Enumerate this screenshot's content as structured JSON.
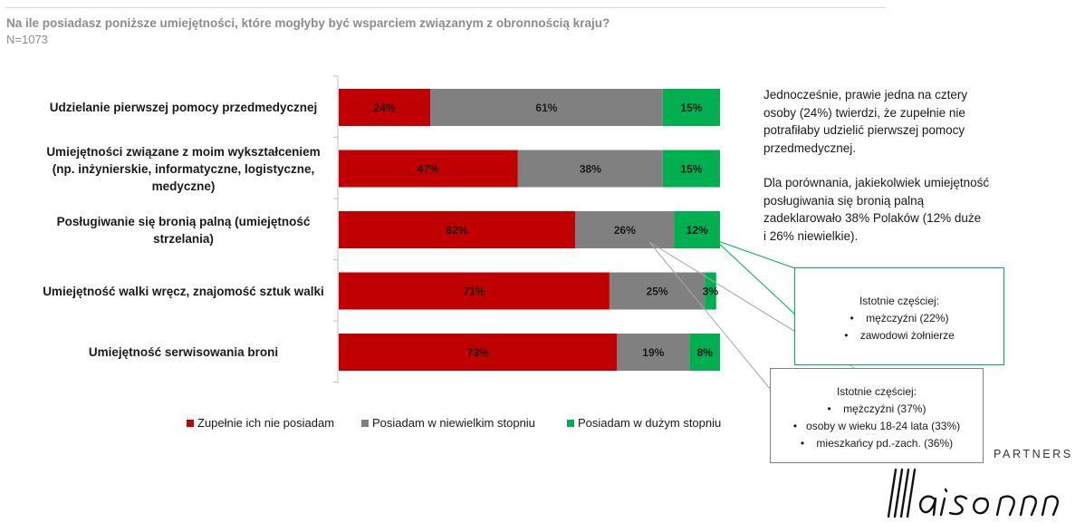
{
  "title": "Na ile posiadasz poniższe umiejętności, które mogłyby być wsparciem związanym z obronnością kraju?",
  "subtitle": "N=1073",
  "colors": {
    "none": "#c00000",
    "small": "#808080",
    "large": "#00b050"
  },
  "chart_data": {
    "type": "bar",
    "orientation": "horizontal",
    "stacked": true,
    "xlim": [
      0,
      100
    ],
    "categories": [
      "Udzielanie pierwszej pomocy przedmedycznej",
      "Umiejętności związane z moim wykształceniem (np. inżynierskie, informatyczne, logistyczne, medyczne)",
      "Posługiwanie się bronią palną (umiejętność strzelania)",
      "Umiejętność walki wręcz, znajomość sztuk walki",
      "Umiejętność serwisowania broni"
    ],
    "category_lines": [
      [
        "Udzielanie pierwszej pomocy przedmedycznej"
      ],
      [
        "Umiejętności związane z moim wykształceniem",
        "(np. inżynierskie, informatyczne, logistyczne,",
        "medyczne)"
      ],
      [
        "Posługiwanie się bronią palną (umiejętność",
        "strzelania)"
      ],
      [
        "Umiejętność walki wręcz, znajomość sztuk walki"
      ],
      [
        "Umiejętność serwisowania broni"
      ]
    ],
    "series": [
      {
        "name": "Zupełnie ich nie posiadam",
        "values": [
          24,
          47,
          62,
          71,
          73
        ],
        "labels": [
          "24%",
          "47%",
          "62%",
          "71%",
          "73%"
        ]
      },
      {
        "name": "Posiadam w niewielkim stopniu",
        "values": [
          61,
          38,
          26,
          25,
          19
        ],
        "labels": [
          "61%",
          "38%",
          "26%",
          "25%",
          "19%"
        ]
      },
      {
        "name": "Posiadam w dużym stopniu",
        "values": [
          15,
          15,
          12,
          3,
          8
        ],
        "labels": [
          "15%",
          "15%",
          "12%",
          "3%",
          "8%"
        ]
      }
    ],
    "legend_position": "bottom"
  },
  "note": {
    "p1": [
      "Jednocześnie, prawie jedna na cztery",
      "osoby (24%) twierdzi, że zupełnie nie",
      "potrafiłaby udzielić pierwszej pomocy",
      "przedmedycznej."
    ],
    "p2": [
      "Dla porównania, jakiekolwiek umiejętność",
      "posługiwania się bronią palną",
      "zadeklarowało 38% Polaków (12% duże",
      "i 26% niewielkie)."
    ]
  },
  "callouts": [
    {
      "title": "Istotnie częściej:",
      "items": [
        "mężczyźni (22%)",
        "zawodowi żołnierze"
      ]
    },
    {
      "title": "Istotnie częściej:",
      "items": [
        "mężczyźni (37%)",
        "osoby w wieku 18-24 lata (33%)",
        "mieszkańcy pd.-zach. (36%)"
      ]
    }
  ],
  "brand": {
    "name": "Maison",
    "tagline": "PARTNERS"
  }
}
